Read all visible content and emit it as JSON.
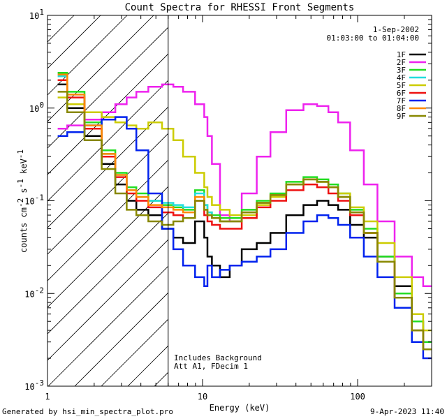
{
  "chart_data": {
    "type": "line",
    "title": "Count Spectra for RHESSI Front Segments",
    "xlabel": "Energy (keV)",
    "ylabel_parts": {
      "main": "counts cm",
      "exp1": "-2",
      "mid1": " s",
      "exp2": "-1",
      "mid2": " keV",
      "exp3": "-1"
    },
    "x_scale": "log",
    "y_scale": "log",
    "xlim": [
      1,
      300
    ],
    "ylim": [
      0.001,
      10
    ],
    "x_tick_labels": [
      {
        "value": 1,
        "label": "1"
      },
      {
        "value": 10,
        "label": "10"
      },
      {
        "value": 100,
        "label": "100"
      }
    ],
    "y_tick_labels": [
      {
        "value": 10,
        "base": "10",
        "exp": "1"
      },
      {
        "value": 1,
        "base": "10",
        "exp": "0"
      },
      {
        "value": 0.1,
        "base": "10",
        "exp": "-1"
      },
      {
        "value": 0.01,
        "base": "10",
        "exp": "-2"
      },
      {
        "value": 0.001,
        "base": "10",
        "exp": "-3"
      }
    ],
    "shaded_region_keV": [
      1,
      6
    ],
    "vertical_line_keV": 6,
    "date": "1-Sep-2002",
    "time_range": "01:03:00 to 01:04:00",
    "annotations": [
      "Includes Background",
      "Att A1, FDecim 1"
    ],
    "x_points": [
      1.2,
      1.5,
      2,
      2.5,
      3,
      3.5,
      4,
      5,
      6,
      7,
      8,
      10,
      10.5,
      11,
      12,
      14,
      16,
      20,
      25,
      30,
      40,
      50,
      60,
      70,
      80,
      100,
      120,
      150,
      200,
      250,
      280
    ],
    "series": [
      {
        "name": "1F",
        "color": "#000000",
        "values": [
          1.8,
          1.0,
          0.5,
          0.25,
          0.15,
          0.1,
          0.08,
          0.07,
          0.05,
          0.04,
          0.035,
          0.06,
          0.04,
          0.025,
          0.02,
          0.015,
          0.02,
          0.03,
          0.035,
          0.045,
          0.07,
          0.09,
          0.1,
          0.09,
          0.08,
          0.055,
          0.04,
          0.025,
          0.012,
          0.005,
          0.003
        ]
      },
      {
        "name": "2F",
        "color": "#ee22ee",
        "values": [
          0.6,
          0.65,
          0.75,
          0.9,
          1.1,
          1.3,
          1.5,
          1.7,
          1.8,
          1.7,
          1.5,
          1.1,
          0.8,
          0.5,
          0.25,
          0.07,
          0.06,
          0.12,
          0.3,
          0.55,
          0.95,
          1.1,
          1.05,
          0.9,
          0.7,
          0.35,
          0.15,
          0.06,
          0.025,
          0.015,
          0.012
        ]
      },
      {
        "name": "3F",
        "color": "#22dd22",
        "values": [
          2.4,
          1.5,
          0.7,
          0.35,
          0.2,
          0.14,
          0.12,
          0.1,
          0.09,
          0.085,
          0.08,
          0.13,
          0.09,
          0.075,
          0.07,
          0.065,
          0.065,
          0.08,
          0.1,
          0.12,
          0.16,
          0.18,
          0.17,
          0.15,
          0.12,
          0.08,
          0.05,
          0.025,
          0.01,
          0.005,
          0.003
        ]
      },
      {
        "name": "4F",
        "color": "#22dddd",
        "values": [
          2.2,
          1.4,
          0.65,
          0.32,
          0.19,
          0.13,
          0.11,
          0.1,
          0.095,
          0.09,
          0.085,
          0.12,
          0.09,
          0.075,
          0.065,
          0.06,
          0.06,
          0.075,
          0.095,
          0.115,
          0.15,
          0.17,
          0.16,
          0.14,
          0.11,
          0.075,
          0.045,
          0.022,
          0.009,
          0.004,
          0.0025
        ]
      },
      {
        "name": "5F",
        "color": "#cccc00",
        "values": [
          1.3,
          1.1,
          0.9,
          0.8,
          0.7,
          0.65,
          0.6,
          0.7,
          0.6,
          0.45,
          0.3,
          0.2,
          0.14,
          0.11,
          0.09,
          0.08,
          0.07,
          0.07,
          0.09,
          0.11,
          0.15,
          0.17,
          0.16,
          0.14,
          0.12,
          0.085,
          0.06,
          0.035,
          0.015,
          0.006,
          0.004
        ]
      },
      {
        "name": "6F",
        "color": "#ee1111",
        "values": [
          2.0,
          1.3,
          0.6,
          0.3,
          0.18,
          0.12,
          0.1,
          0.085,
          0.075,
          0.07,
          0.065,
          0.1,
          0.07,
          0.06,
          0.055,
          0.05,
          0.05,
          0.065,
          0.085,
          0.1,
          0.13,
          0.15,
          0.14,
          0.12,
          0.1,
          0.07,
          0.045,
          0.022,
          0.009,
          0.004,
          0.0025
        ]
      },
      {
        "name": "7F",
        "color": "#0022ee",
        "values": [
          0.5,
          0.55,
          0.65,
          0.75,
          0.8,
          0.6,
          0.35,
          0.12,
          0.05,
          0.03,
          0.02,
          0.015,
          0.012,
          0.02,
          0.015,
          0.018,
          0.02,
          0.022,
          0.025,
          0.03,
          0.045,
          0.06,
          0.07,
          0.065,
          0.055,
          0.04,
          0.025,
          0.015,
          0.007,
          0.003,
          0.002
        ]
      },
      {
        "name": "8F",
        "color": "#ff8800",
        "values": [
          2.3,
          1.4,
          0.65,
          0.32,
          0.19,
          0.13,
          0.11,
          0.09,
          0.085,
          0.08,
          0.075,
          0.11,
          0.08,
          0.07,
          0.065,
          0.06,
          0.06,
          0.075,
          0.095,
          0.115,
          0.15,
          0.17,
          0.16,
          0.14,
          0.11,
          0.075,
          0.045,
          0.022,
          0.009,
          0.004,
          0.0025
        ]
      },
      {
        "name": "9F",
        "color": "#888800",
        "values": [
          1.5,
          0.9,
          0.45,
          0.22,
          0.12,
          0.08,
          0.07,
          0.06,
          0.055,
          0.06,
          0.065,
          0.1,
          0.08,
          0.07,
          0.065,
          0.06,
          0.06,
          0.075,
          0.095,
          0.115,
          0.15,
          0.17,
          0.16,
          0.14,
          0.11,
          0.075,
          0.045,
          0.022,
          0.009,
          0.004,
          0.0025
        ]
      }
    ]
  },
  "footer": {
    "left": "Generated by hsi_min_spectra_plot.pro",
    "right": "9-Apr-2023 11:40"
  }
}
